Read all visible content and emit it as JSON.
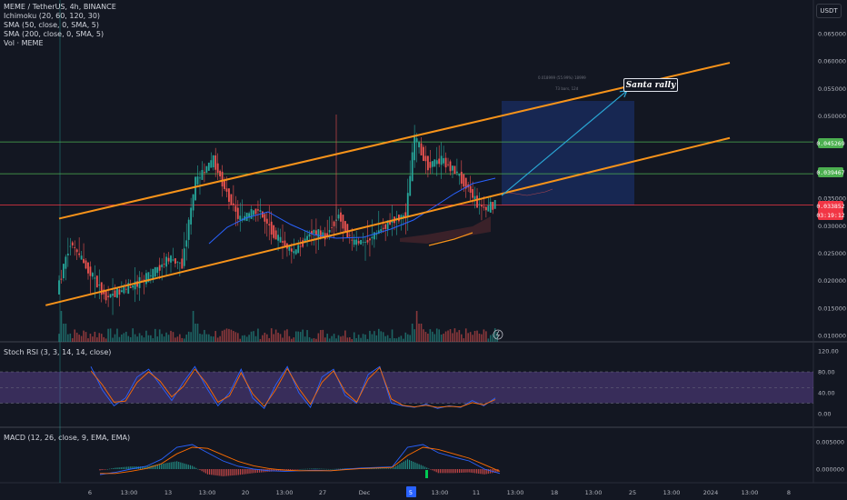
{
  "legend": {
    "symbol": "MEME / TetherUS, 4h, BINANCE",
    "indicators": [
      "Ichimoku (20, 60, 120, 30)",
      "SMA (50, close, 0, SMA, 5)",
      "SMA (200, close, 0, SMA, 5)",
      "Vol · MEME"
    ]
  },
  "currency": "USDT",
  "price_badges": {
    "green_top": "0.045269",
    "green_bottom": "0.039467",
    "current": "0.033852",
    "countdown": "03:19:12"
  },
  "annotation": "Santa rally",
  "measure_text_1": "0.018999 (55.99%) 18999",
  "measure_text_2": "73 bars, 12d",
  "colors": {
    "background": "#131722",
    "up": "#26a69a",
    "down": "#ef5350",
    "channel": "#f7931a",
    "rsi_band": "#7e57c2",
    "hline_green": "#4caf50",
    "hline_red": "#f23645",
    "arrow": "#2aa6d4"
  },
  "chart_data": [
    {
      "type": "line",
      "title": "MEME / TetherUS, 4h, BINANCE",
      "ylim": [
        0.0095,
        0.067
      ],
      "y_ticks": [
        "0.065000",
        "0.060000",
        "0.055000",
        "0.050000",
        "0.045269",
        "0.039467",
        "0.035000",
        "0.033852",
        "0.030000",
        "0.025000",
        "0.020000",
        "0.015000",
        "0.010000"
      ],
      "x_ticks": [
        "6",
        "13:00",
        "13",
        "13:00",
        "20",
        "13:00",
        "27",
        "Dec",
        "5",
        "13:00",
        "11",
        "13:00",
        "18",
        "13:00",
        "25",
        "13:00",
        "2024",
        "13:00",
        "8"
      ],
      "price_path": [
        {
          "x": 0,
          "y": 0.018
        },
        {
          "x": 6,
          "y": 0.027
        },
        {
          "x": 14,
          "y": 0.022
        },
        {
          "x": 22,
          "y": 0.017
        },
        {
          "x": 34,
          "y": 0.019
        },
        {
          "x": 42,
          "y": 0.021
        },
        {
          "x": 50,
          "y": 0.024
        },
        {
          "x": 56,
          "y": 0.023
        },
        {
          "x": 62,
          "y": 0.038
        },
        {
          "x": 70,
          "y": 0.042
        },
        {
          "x": 76,
          "y": 0.036
        },
        {
          "x": 82,
          "y": 0.031
        },
        {
          "x": 90,
          "y": 0.033
        },
        {
          "x": 98,
          "y": 0.028
        },
        {
          "x": 106,
          "y": 0.025
        },
        {
          "x": 114,
          "y": 0.029
        },
        {
          "x": 120,
          "y": 0.028
        },
        {
          "x": 126,
          "y": 0.032
        },
        {
          "x": 132,
          "y": 0.027
        },
        {
          "x": 138,
          "y": 0.027
        },
        {
          "x": 144,
          "y": 0.029
        },
        {
          "x": 150,
          "y": 0.031
        },
        {
          "x": 156,
          "y": 0.032
        },
        {
          "x": 160,
          "y": 0.046
        },
        {
          "x": 166,
          "y": 0.041
        },
        {
          "x": 172,
          "y": 0.042
        },
        {
          "x": 178,
          "y": 0.04
        },
        {
          "x": 184,
          "y": 0.037
        },
        {
          "x": 188,
          "y": 0.034
        },
        {
          "x": 192,
          "y": 0.033
        },
        {
          "x": 196,
          "y": 0.034
        }
      ],
      "channel_upper": [
        {
          "x": 0,
          "y": 0.0313
        },
        {
          "x": 300,
          "y": 0.0597
        }
      ],
      "channel_lower": [
        {
          "x": -6,
          "y": 0.0155
        },
        {
          "x": 300,
          "y": 0.046
        }
      ],
      "horizontal_levels": [
        0.045269,
        0.039467,
        0.0338
      ],
      "projection": {
        "from": {
          "x": 198,
          "y": 0.0355
        },
        "to": {
          "x": 254,
          "y": 0.0546
        }
      },
      "xlabel": "",
      "ylabel": ""
    },
    {
      "type": "line",
      "title": "Stoch RSI (3, 3, 14, 14, close)",
      "ylim": [
        0,
        120
      ],
      "y_ticks": [
        "120.00",
        "80.00",
        "40.00",
        "0.00"
      ],
      "band": [
        20,
        80
      ],
      "series": [
        {
          "values": [
            90,
            45,
            15,
            30,
            70,
            85,
            55,
            25,
            60,
            90,
            50,
            15,
            40,
            85,
            30,
            10,
            55,
            90,
            40,
            12,
            70,
            85,
            35,
            20,
            75,
            90,
            20,
            15,
            12,
            18,
            10,
            15,
            12,
            25,
            15,
            30
          ]
        },
        {
          "values": [
            82,
            55,
            22,
            24,
            60,
            80,
            62,
            32,
            52,
            85,
            58,
            22,
            34,
            78,
            38,
            14,
            46,
            86,
            48,
            18,
            60,
            82,
            42,
            22,
            66,
            88,
            28,
            16,
            13,
            16,
            12,
            14,
            13,
            21,
            17,
            27
          ]
        }
      ]
    },
    {
      "type": "line",
      "title": "MACD (12, 26, close, 9, EMA, EMA)",
      "ylim": [
        -0.002,
        0.006
      ],
      "y_ticks": [
        "0.005000",
        "0.000000"
      ],
      "series": [
        {
          "values": [
            -0.001,
            -0.0006,
            0.0,
            0.0005,
            0.0018,
            0.004,
            0.0045,
            0.003,
            0.0015,
            0.0005,
            0.0,
            -0.0003,
            -0.0004,
            -0.0003,
            -0.0002,
            -0.0003,
            0.0,
            0.0002,
            0.0003,
            0.0004,
            0.004,
            0.0045,
            0.003,
            0.0022,
            0.0015,
            0.0,
            -0.0008
          ]
        },
        {
          "values": [
            -0.0008,
            -0.0008,
            -0.0004,
            0.0001,
            0.001,
            0.0028,
            0.004,
            0.0038,
            0.0026,
            0.0014,
            0.0006,
            0.0001,
            -0.0002,
            -0.0003,
            -0.0003,
            -0.0003,
            -0.0001,
            0.0001,
            0.0002,
            0.0003,
            0.0025,
            0.004,
            0.0036,
            0.0028,
            0.002,
            0.0008,
            -0.0004
          ]
        }
      ]
    }
  ]
}
